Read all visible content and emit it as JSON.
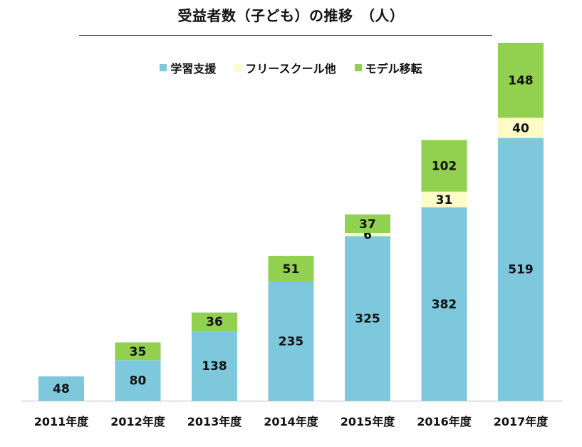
{
  "chart_data": {
    "type": "bar",
    "stacked": true,
    "title": "受益者数（子ども）の推移　（人）",
    "categories": [
      "2011年度",
      "2012年度",
      "2013年度",
      "2014年度",
      "2015年度",
      "2016年度",
      "2017年度"
    ],
    "series": [
      {
        "name": "学習支援",
        "color": "#7ec8de",
        "values": [
          48,
          80,
          138,
          235,
          325,
          382,
          519
        ]
      },
      {
        "name": "フリースクール他",
        "color": "#fdfbc6",
        "values": [
          0,
          0,
          0,
          0,
          6,
          31,
          40
        ]
      },
      {
        "name": "モデル移転",
        "color": "#92d050",
        "values": [
          0,
          35,
          36,
          51,
          37,
          102,
          148
        ]
      }
    ],
    "ylim": [
      0,
      707
    ],
    "grid": false,
    "legend": "top-center"
  }
}
